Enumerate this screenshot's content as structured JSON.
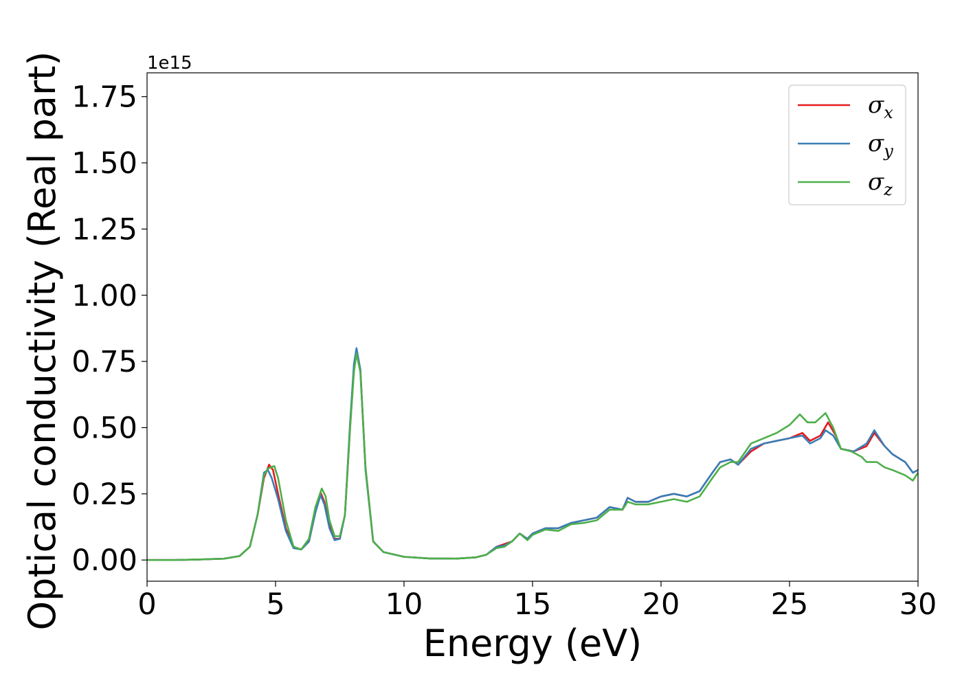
{
  "chart_data": {
    "type": "line",
    "title": "",
    "xlabel": "Energy (eV)",
    "ylabel": "Optical conductivity (Real part)",
    "y_offset_label": "1e15",
    "xlim": [
      0,
      30
    ],
    "ylim": [
      -0.08,
      1.84
    ],
    "x_ticks": [
      0,
      5,
      10,
      15,
      20,
      25,
      30
    ],
    "x_tick_labels": [
      "0",
      "5",
      "10",
      "15",
      "20",
      "25",
      "30"
    ],
    "y_ticks": [
      0,
      0.25,
      0.5,
      0.75,
      1.0,
      1.25,
      1.5,
      1.75
    ],
    "y_tick_labels": [
      "0.00",
      "0.25",
      "0.50",
      "0.75",
      "1.00",
      "1.25",
      "1.50",
      "1.75"
    ],
    "grid": false,
    "legend_position": "top-right",
    "series": [
      {
        "name": "σx",
        "symbol": "σ",
        "subscript": "x",
        "color": "#e41a1c",
        "points": [
          [
            0,
            0.0
          ],
          [
            1,
            0.0
          ],
          [
            2,
            0.002
          ],
          [
            3,
            0.005
          ],
          [
            3.6,
            0.015
          ],
          [
            4.0,
            0.05
          ],
          [
            4.3,
            0.17
          ],
          [
            4.55,
            0.31
          ],
          [
            4.75,
            0.36
          ],
          [
            4.9,
            0.34
          ],
          [
            5.1,
            0.25
          ],
          [
            5.4,
            0.12
          ],
          [
            5.7,
            0.05
          ],
          [
            6.0,
            0.04
          ],
          [
            6.3,
            0.07
          ],
          [
            6.55,
            0.18
          ],
          [
            6.75,
            0.255
          ],
          [
            6.9,
            0.22
          ],
          [
            7.1,
            0.13
          ],
          [
            7.3,
            0.08
          ],
          [
            7.5,
            0.08
          ],
          [
            7.7,
            0.17
          ],
          [
            7.9,
            0.5
          ],
          [
            8.05,
            0.72
          ],
          [
            8.15,
            0.79
          ],
          [
            8.3,
            0.72
          ],
          [
            8.5,
            0.35
          ],
          [
            8.8,
            0.07
          ],
          [
            9.2,
            0.03
          ],
          [
            10,
            0.012
          ],
          [
            11,
            0.006
          ],
          [
            12,
            0.005
          ],
          [
            12.8,
            0.01
          ],
          [
            13.2,
            0.02
          ],
          [
            13.6,
            0.05
          ],
          [
            13.9,
            0.06
          ],
          [
            14.2,
            0.07
          ],
          [
            14.5,
            0.1
          ],
          [
            14.8,
            0.08
          ],
          [
            15.0,
            0.1
          ],
          [
            15.5,
            0.12
          ],
          [
            16,
            0.12
          ],
          [
            16.5,
            0.14
          ],
          [
            17,
            0.15
          ],
          [
            17.5,
            0.16
          ],
          [
            18,
            0.2
          ],
          [
            18.5,
            0.19
          ],
          [
            18.7,
            0.235
          ],
          [
            19,
            0.22
          ],
          [
            19.5,
            0.22
          ],
          [
            20,
            0.24
          ],
          [
            20.5,
            0.25
          ],
          [
            21,
            0.24
          ],
          [
            21.5,
            0.26
          ],
          [
            22,
            0.33
          ],
          [
            22.3,
            0.37
          ],
          [
            22.7,
            0.38
          ],
          [
            23,
            0.36
          ],
          [
            23.5,
            0.41
          ],
          [
            24,
            0.44
          ],
          [
            24.5,
            0.45
          ],
          [
            25,
            0.46
          ],
          [
            25.5,
            0.48
          ],
          [
            25.8,
            0.45
          ],
          [
            26.2,
            0.47
          ],
          [
            26.5,
            0.52
          ],
          [
            26.8,
            0.47
          ],
          [
            27,
            0.42
          ],
          [
            27.5,
            0.41
          ],
          [
            28,
            0.43
          ],
          [
            28.3,
            0.48
          ],
          [
            28.7,
            0.43
          ],
          [
            29,
            0.4
          ],
          [
            29.5,
            0.37
          ],
          [
            29.8,
            0.33
          ],
          [
            30,
            0.34
          ]
        ]
      },
      {
        "name": "σy",
        "symbol": "σ",
        "subscript": "y",
        "color": "#377eb8",
        "points": [
          [
            0,
            0.0
          ],
          [
            1,
            0.0
          ],
          [
            2,
            0.002
          ],
          [
            3,
            0.005
          ],
          [
            3.6,
            0.015
          ],
          [
            4.0,
            0.05
          ],
          [
            4.3,
            0.17
          ],
          [
            4.55,
            0.33
          ],
          [
            4.7,
            0.34
          ],
          [
            4.85,
            0.31
          ],
          [
            5.1,
            0.23
          ],
          [
            5.4,
            0.11
          ],
          [
            5.7,
            0.045
          ],
          [
            6.0,
            0.04
          ],
          [
            6.3,
            0.07
          ],
          [
            6.55,
            0.18
          ],
          [
            6.75,
            0.245
          ],
          [
            6.9,
            0.21
          ],
          [
            7.1,
            0.12
          ],
          [
            7.3,
            0.075
          ],
          [
            7.5,
            0.08
          ],
          [
            7.7,
            0.17
          ],
          [
            7.9,
            0.52
          ],
          [
            8.05,
            0.74
          ],
          [
            8.15,
            0.8
          ],
          [
            8.3,
            0.72
          ],
          [
            8.5,
            0.34
          ],
          [
            8.8,
            0.07
          ],
          [
            9.2,
            0.03
          ],
          [
            10,
            0.012
          ],
          [
            11,
            0.006
          ],
          [
            12,
            0.005
          ],
          [
            12.8,
            0.01
          ],
          [
            13.2,
            0.02
          ],
          [
            13.6,
            0.05
          ],
          [
            13.9,
            0.055
          ],
          [
            14.2,
            0.07
          ],
          [
            14.5,
            0.1
          ],
          [
            14.8,
            0.08
          ],
          [
            15.0,
            0.1
          ],
          [
            15.5,
            0.12
          ],
          [
            16,
            0.12
          ],
          [
            16.5,
            0.14
          ],
          [
            17,
            0.15
          ],
          [
            17.5,
            0.16
          ],
          [
            18,
            0.2
          ],
          [
            18.5,
            0.19
          ],
          [
            18.7,
            0.235
          ],
          [
            19,
            0.22
          ],
          [
            19.5,
            0.22
          ],
          [
            20,
            0.24
          ],
          [
            20.5,
            0.25
          ],
          [
            21,
            0.24
          ],
          [
            21.5,
            0.26
          ],
          [
            22,
            0.33
          ],
          [
            22.3,
            0.37
          ],
          [
            22.7,
            0.38
          ],
          [
            23,
            0.36
          ],
          [
            23.5,
            0.42
          ],
          [
            24,
            0.44
          ],
          [
            24.5,
            0.45
          ],
          [
            25,
            0.46
          ],
          [
            25.5,
            0.47
          ],
          [
            25.8,
            0.44
          ],
          [
            26.2,
            0.46
          ],
          [
            26.4,
            0.49
          ],
          [
            26.7,
            0.47
          ],
          [
            27,
            0.42
          ],
          [
            27.5,
            0.41
          ],
          [
            28,
            0.44
          ],
          [
            28.3,
            0.49
          ],
          [
            28.7,
            0.43
          ],
          [
            29,
            0.4
          ],
          [
            29.5,
            0.37
          ],
          [
            29.8,
            0.33
          ],
          [
            30,
            0.34
          ]
        ]
      },
      {
        "name": "σz",
        "symbol": "σ",
        "subscript": "z",
        "color": "#4daf4a",
        "points": [
          [
            0,
            0.0
          ],
          [
            1,
            0.0
          ],
          [
            2,
            0.002
          ],
          [
            3,
            0.005
          ],
          [
            3.6,
            0.015
          ],
          [
            4.0,
            0.05
          ],
          [
            4.3,
            0.17
          ],
          [
            4.55,
            0.32
          ],
          [
            4.7,
            0.345
          ],
          [
            4.95,
            0.355
          ],
          [
            5.1,
            0.31
          ],
          [
            5.4,
            0.15
          ],
          [
            5.7,
            0.05
          ],
          [
            6.0,
            0.04
          ],
          [
            6.3,
            0.08
          ],
          [
            6.55,
            0.2
          ],
          [
            6.8,
            0.27
          ],
          [
            6.95,
            0.24
          ],
          [
            7.1,
            0.15
          ],
          [
            7.3,
            0.09
          ],
          [
            7.5,
            0.09
          ],
          [
            7.7,
            0.17
          ],
          [
            7.9,
            0.5
          ],
          [
            8.05,
            0.71
          ],
          [
            8.15,
            0.78
          ],
          [
            8.3,
            0.71
          ],
          [
            8.5,
            0.35
          ],
          [
            8.8,
            0.07
          ],
          [
            9.2,
            0.03
          ],
          [
            10,
            0.012
          ],
          [
            11,
            0.006
          ],
          [
            12,
            0.005
          ],
          [
            12.8,
            0.01
          ],
          [
            13.2,
            0.02
          ],
          [
            13.6,
            0.045
          ],
          [
            13.9,
            0.05
          ],
          [
            14.2,
            0.07
          ],
          [
            14.5,
            0.1
          ],
          [
            14.8,
            0.075
          ],
          [
            15.0,
            0.095
          ],
          [
            15.5,
            0.115
          ],
          [
            16,
            0.11
          ],
          [
            16.5,
            0.135
          ],
          [
            17,
            0.14
          ],
          [
            17.5,
            0.15
          ],
          [
            18,
            0.19
          ],
          [
            18.5,
            0.19
          ],
          [
            18.7,
            0.22
          ],
          [
            19,
            0.21
          ],
          [
            19.5,
            0.21
          ],
          [
            20,
            0.22
          ],
          [
            20.5,
            0.23
          ],
          [
            21,
            0.22
          ],
          [
            21.5,
            0.24
          ],
          [
            22,
            0.31
          ],
          [
            22.3,
            0.35
          ],
          [
            22.7,
            0.37
          ],
          [
            23,
            0.37
          ],
          [
            23.5,
            0.44
          ],
          [
            24,
            0.46
          ],
          [
            24.5,
            0.48
          ],
          [
            25,
            0.51
          ],
          [
            25.4,
            0.55
          ],
          [
            25.7,
            0.52
          ],
          [
            26,
            0.52
          ],
          [
            26.4,
            0.555
          ],
          [
            26.7,
            0.5
          ],
          [
            27,
            0.42
          ],
          [
            27.4,
            0.41
          ],
          [
            27.8,
            0.39
          ],
          [
            28,
            0.37
          ],
          [
            28.4,
            0.37
          ],
          [
            28.7,
            0.35
          ],
          [
            29,
            0.34
          ],
          [
            29.5,
            0.32
          ],
          [
            29.8,
            0.3
          ],
          [
            30,
            0.33
          ]
        ]
      }
    ]
  }
}
